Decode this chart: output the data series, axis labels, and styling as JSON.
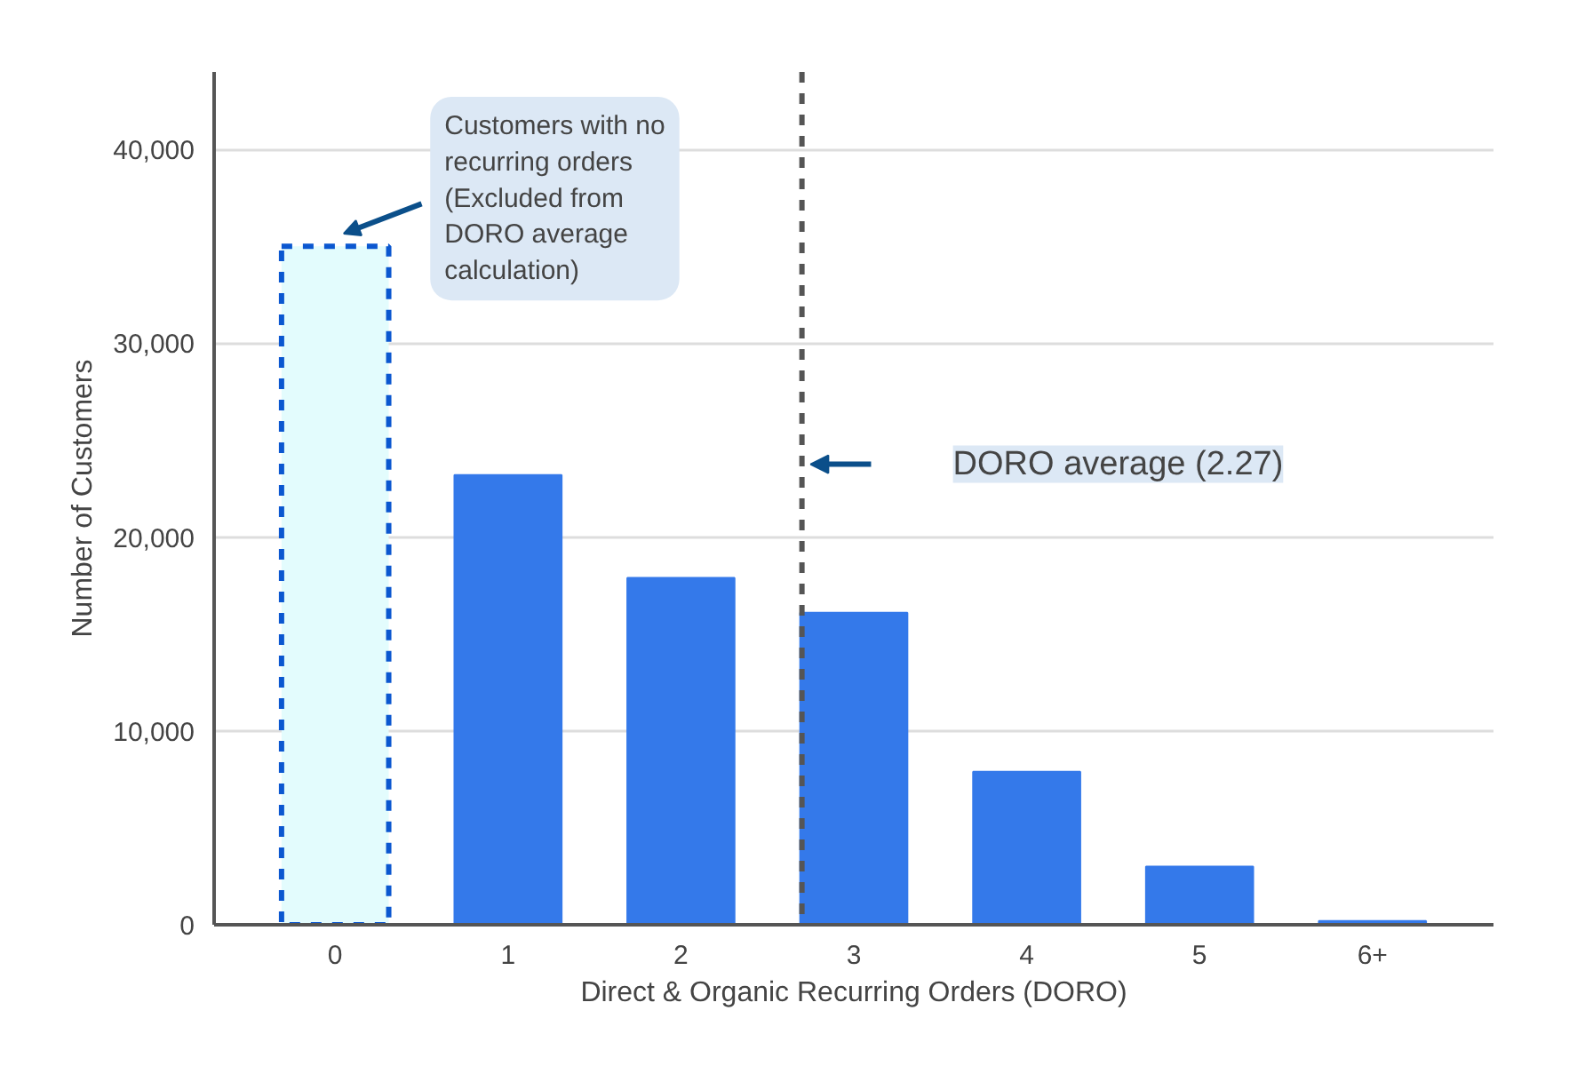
{
  "chart_data": {
    "type": "bar",
    "xlabel": "Direct & Organic Recurring Orders (DORO)",
    "ylabel": "Number of Customers",
    "x": [
      0,
      1,
      2,
      3,
      4,
      5,
      6
    ],
    "xlim": [
      -0.7,
      6.7
    ],
    "xticks": [
      0,
      1,
      2,
      3,
      4,
      5,
      {
        "value": 6,
        "label": "6+"
      }
    ],
    "series": [
      {
        "color": "#e3fcfd",
        "line_style": "dashed",
        "values": [
          35000,
          null,
          null,
          null,
          null,
          null,
          null
        ]
      },
      {
        "color": "#3479ea",
        "values": [
          null,
          23200,
          17900,
          16100,
          7900,
          3000,
          200
        ]
      }
    ],
    "ylim": [
      0,
      44000
    ],
    "yticks": [
      0,
      {
        "value": 10000,
        "label": "10,000"
      },
      {
        "value": 20000,
        "label": "20,000"
      },
      {
        "value": 30000,
        "label": "30,000"
      },
      {
        "value": 40000,
        "label": "40,000"
      }
    ],
    "grid": "y",
    "ref_lines": [
      {
        "axis": "x",
        "value": 2.7,
        "label": "DORO average (2.27)",
        "color": "#555555",
        "line_style": "dashed"
      }
    ],
    "annotations": [
      {
        "text": "Customers with no recurring orders (Excluded from DORO average calculation)",
        "x": 0,
        "y": 35000
      }
    ]
  }
}
